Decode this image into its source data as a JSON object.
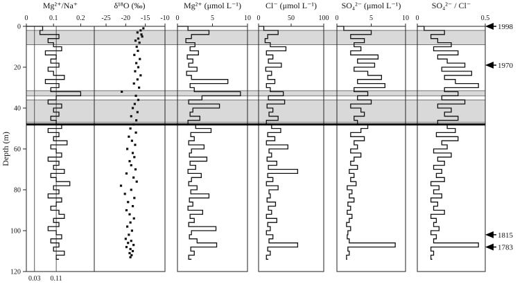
{
  "chart_data": {
    "type": "line",
    "y_axis": {
      "label": "Depth (m)",
      "ylim": [
        0,
        120
      ],
      "ticks": [
        0,
        20,
        40,
        60,
        80,
        100,
        120
      ],
      "inverted": true
    },
    "shaded_depth_bands": [
      [
        2,
        9
      ],
      [
        31.5,
        34
      ],
      [
        36,
        47
      ]
    ],
    "boundary_line_depth": 48,
    "event_markers": [
      {
        "label": "1998",
        "depth": 0
      },
      {
        "label": "1970",
        "depth": 19
      },
      {
        "label": "1815",
        "depth": 102
      },
      {
        "label": "1783",
        "depth": 108
      }
    ],
    "panels": [
      {
        "id": "mg-na",
        "title": "Mg²⁺/Na⁺",
        "xlim": [
          0,
          0.25
        ],
        "top_ticks": [
          {
            "v": 0,
            "t": "0"
          },
          {
            "v": 0.1,
            "t": "0.1"
          },
          {
            "v": 0.2,
            "t": "0.2"
          }
        ],
        "bottom_labels": [
          {
            "v": 0.03,
            "t": "0.03"
          },
          {
            "v": 0.11,
            "t": "0.11"
          }
        ],
        "ref_lines": [
          0.03,
          0.11
        ],
        "series": [
          {
            "depth": [
              0,
              2,
              4,
              6,
              8,
              10,
              12,
              14,
              16,
              18,
              20,
              22,
              24,
              26,
              28,
              30,
              32,
              34,
              36,
              38,
              40,
              42,
              44,
              46,
              48,
              50,
              52,
              54,
              56,
              58,
              60,
              62,
              64,
              66,
              68,
              70,
              72,
              74,
              76,
              78,
              80,
              82,
              84,
              86,
              88,
              90,
              92,
              94,
              96,
              98,
              100,
              102,
              104,
              106,
              108,
              110,
              112,
              114
            ],
            "value": [
              0.06,
              0.05,
              0.12,
              0.08,
              0.1,
              0.13,
              0.07,
              0.11,
              0.09,
              0.12,
              0.08,
              0.1,
              0.14,
              0.07,
              0.12,
              0.09,
              0.2,
              0.11,
              0.08,
              0.13,
              0.1,
              0.12,
              0.09,
              0.11,
              0.13,
              0.08,
              0.12,
              0.1,
              0.15,
              0.09,
              0.11,
              0.13,
              0.08,
              0.12,
              0.1,
              0.14,
              0.09,
              0.11,
              0.16,
              0.1,
              0.12,
              0.08,
              0.13,
              0.11,
              0.09,
              0.12,
              0.14,
              0.1,
              0.12,
              0.08,
              0.11,
              0.13,
              0.09,
              0.12,
              0.1,
              0.14,
              0.11,
              0.12
            ]
          }
        ]
      },
      {
        "id": "d18o",
        "title": "δ¹⁸O (‰)",
        "xlim": [
          -28,
          -10
        ],
        "top_ticks": [
          {
            "v": -25,
            "t": "-25"
          },
          {
            "v": -20,
            "t": "-20"
          },
          {
            "v": -15,
            "t": "-15"
          },
          {
            "v": -10,
            "t": "-10"
          }
        ],
        "style": "dots",
        "series": [
          {
            "depth": [
              1,
              2,
              3,
              4,
              5,
              6,
              7,
              8,
              10,
              12,
              14,
              16,
              18,
              20,
              22,
              24,
              26,
              28,
              30,
              32,
              34,
              36,
              38,
              40,
              42,
              44,
              46,
              48,
              50,
              52,
              54,
              56,
              58,
              60,
              62,
              64,
              66,
              68,
              70,
              72,
              74,
              76,
              78,
              80,
              82,
              84,
              86,
              88,
              90,
              92,
              94,
              96,
              98,
              100,
              102,
              104,
              105,
              106,
              107,
              108,
              109,
              110,
              111,
              112,
              113
            ],
            "value": [
              -15.5,
              -16.2,
              -17.0,
              -16.0,
              -15.8,
              -16.8,
              -17.5,
              -16.5,
              -17.2,
              -16.9,
              -17.8,
              -16.4,
              -17.3,
              -16.8,
              -17.6,
              -16.2,
              -17.0,
              -17.9,
              -16.6,
              -21.0,
              -17.4,
              -16.8,
              -17.7,
              -18.2,
              -17.0,
              -18.6,
              -17.3,
              -18.0,
              -18.8,
              -17.4,
              -19.2,
              -18.4,
              -17.6,
              -19.6,
              -18.2,
              -17.8,
              -19.0,
              -18.6,
              -17.5,
              -19.8,
              -18.0,
              -17.2,
              -21.2,
              -18.6,
              -20.2,
              -17.8,
              -19.4,
              -18.2,
              -19.8,
              -19.0,
              -17.9,
              -18.8,
              -19.6,
              -18.4,
              -19.2,
              -20.0,
              -18.6,
              -19.4,
              -18.0,
              -19.8,
              -18.8,
              -18.2,
              -19.0,
              -18.5,
              -18.8
            ]
          }
        ]
      },
      {
        "id": "mg",
        "title": "Mg²⁺ (μmol L⁻¹)",
        "xlim": [
          0,
          10
        ],
        "top_ticks": [
          {
            "v": 0,
            "t": "0"
          },
          {
            "v": 5,
            "t": "5"
          },
          {
            "v": 10,
            "t": "10"
          }
        ],
        "series": [
          {
            "depth": [
              0,
              2,
              4,
              6,
              8,
              10,
              12,
              14,
              16,
              18,
              20,
              22,
              24,
              26,
              28,
              30,
              32,
              34,
              36,
              38,
              40,
              42,
              44,
              46,
              48,
              50,
              52,
              54,
              56,
              58,
              60,
              62,
              64,
              66,
              68,
              70,
              72,
              74,
              76,
              78,
              80,
              82,
              84,
              86,
              88,
              90,
              92,
              94,
              96,
              98,
              100,
              102,
              104,
              106,
              108,
              110,
              112,
              114
            ],
            "value": [
              1.5,
              4.5,
              2.0,
              1.2,
              2.5,
              1.8,
              3.0,
              1.4,
              2.2,
              1.6,
              2.8,
              1.3,
              2.0,
              7.2,
              1.8,
              2.4,
              9.0,
              3.5,
              1.6,
              6.0,
              2.2,
              1.8,
              3.2,
              1.5,
              2.6,
              4.8,
              1.9,
              2.4,
              1.6,
              3.8,
              2.0,
              1.7,
              4.2,
              1.8,
              2.6,
              1.5,
              3.4,
              2.0,
              1.6,
              2.8,
              1.9,
              4.5,
              1.7,
              2.2,
              1.5,
              3.6,
              1.8,
              2.4,
              1.6,
              5.5,
              2.0,
              1.7,
              2.8,
              5.6,
              1.9,
              2.4,
              1.6,
              2.0
            ]
          }
        ]
      },
      {
        "id": "cl",
        "title": "Cl⁻ (μmol L⁻¹)",
        "xlim": [
          0,
          100
        ],
        "top_ticks": [
          {
            "v": 0,
            "t": "0"
          },
          {
            "v": 50,
            "t": "50"
          },
          {
            "v": 100,
            "t": "100"
          }
        ],
        "series": [
          {
            "depth": [
              0,
              2,
              4,
              6,
              8,
              10,
              12,
              14,
              16,
              18,
              20,
              22,
              24,
              26,
              28,
              30,
              32,
              34,
              36,
              38,
              40,
              42,
              44,
              46,
              48,
              50,
              52,
              54,
              56,
              58,
              60,
              62,
              64,
              66,
              68,
              70,
              72,
              74,
              76,
              78,
              80,
              82,
              84,
              86,
              88,
              90,
              92,
              94,
              96,
              98,
              100,
              102,
              104,
              106,
              108,
              110,
              112,
              114
            ],
            "value": [
              8,
              30,
              14,
              10,
              18,
              42,
              12,
              22,
              15,
              35,
              11,
              20,
              14,
              25,
              12,
              18,
              38,
              15,
              40,
              13,
              22,
              16,
              30,
              12,
              20,
              34,
              14,
              25,
              12,
              45,
              16,
              20,
              13,
              28,
              15,
              60,
              14,
              22,
              12,
              30,
              16,
              18,
              13,
              26,
              15,
              20,
              12,
              28,
              14,
              18,
              12,
              22,
              16,
              60,
              14,
              18,
              12,
              15
            ]
          }
        ]
      },
      {
        "id": "so4",
        "title": "SO₄²⁻ (μmol L⁻¹)",
        "xlim": [
          0,
          10
        ],
        "top_ticks": [
          {
            "v": 0,
            "t": "0"
          },
          {
            "v": 5,
            "t": "5"
          },
          {
            "v": 10,
            "t": "10"
          }
        ],
        "series": [
          {
            "depth": [
              0,
              2,
              4,
              6,
              8,
              10,
              12,
              14,
              16,
              18,
              20,
              22,
              24,
              26,
              28,
              30,
              32,
              34,
              36,
              38,
              40,
              42,
              44,
              46,
              48,
              50,
              52,
              54,
              56,
              58,
              60,
              62,
              64,
              66,
              68,
              70,
              72,
              74,
              76,
              78,
              80,
              82,
              84,
              86,
              88,
              90,
              92,
              94,
              96,
              98,
              100,
              102,
              104,
              106,
              108,
              110,
              112,
              114
            ],
            "value": [
              1.0,
              5.0,
              2.0,
              4.0,
              2.5,
              3.5,
              2.0,
              6.0,
              3.0,
              5.5,
              2.5,
              4.5,
              6.5,
              3.0,
              7.0,
              2.5,
              4.5,
              3.0,
              5.0,
              2.0,
              3.5,
              4.0,
              2.5,
              3.0,
              4.5,
              3.5,
              2.0,
              4.0,
              2.5,
              3.0,
              2.0,
              3.5,
              2.5,
              2.0,
              3.0,
              1.8,
              2.5,
              2.0,
              2.8,
              1.5,
              2.2,
              1.8,
              2.5,
              1.6,
              2.0,
              1.5,
              2.2,
              1.8,
              1.4,
              2.0,
              1.6,
              1.5,
              1.8,
              8.5,
              1.6,
              1.8,
              1.4,
              1.5
            ]
          }
        ]
      },
      {
        "id": "so4-cl",
        "title": "SO₄²⁻ / Cl⁻",
        "xlim": [
          0,
          0.5
        ],
        "top_ticks": [
          {
            "v": 0,
            "t": "0"
          },
          {
            "v": 0.5,
            "t": "0.5"
          }
        ],
        "series": [
          {
            "depth": [
              0,
              2,
              4,
              6,
              8,
              10,
              12,
              14,
              16,
              18,
              20,
              22,
              24,
              26,
              28,
              30,
              32,
              34,
              36,
              38,
              40,
              42,
              44,
              46,
              48,
              50,
              52,
              54,
              56,
              58,
              60,
              62,
              64,
              66,
              68,
              70,
              72,
              74,
              76,
              78,
              80,
              82,
              84,
              86,
              88,
              90,
              92,
              94,
              96,
              98,
              100,
              102,
              104,
              106,
              108,
              110,
              112,
              114
            ],
            "value": [
              0.05,
              0.2,
              0.1,
              0.15,
              0.25,
              0.12,
              0.3,
              0.15,
              0.22,
              0.35,
              0.18,
              0.4,
              0.2,
              0.28,
              0.45,
              0.2,
              0.3,
              0.18,
              0.35,
              0.15,
              0.25,
              0.2,
              0.3,
              0.15,
              0.22,
              0.28,
              0.14,
              0.3,
              0.18,
              0.22,
              0.12,
              0.25,
              0.15,
              0.2,
              0.12,
              0.18,
              0.14,
              0.2,
              0.1,
              0.16,
              0.12,
              0.18,
              0.1,
              0.15,
              0.12,
              0.2,
              0.1,
              0.14,
              0.12,
              0.16,
              0.1,
              0.14,
              0.12,
              0.45,
              0.1,
              0.12,
              0.1,
              0.11
            ]
          }
        ]
      }
    ]
  }
}
